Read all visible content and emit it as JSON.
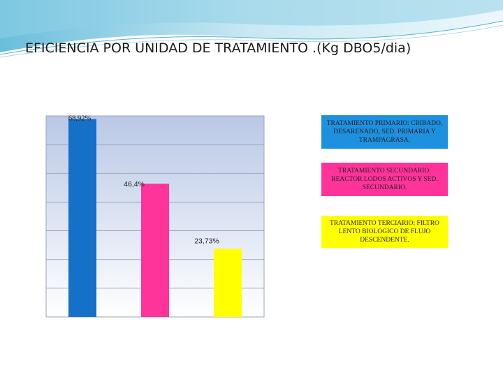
{
  "slide": {
    "title": "EFICIENCIA POR UNIDAD DE TRATAMIENTO .(Kg DBO5/dia)"
  },
  "colors": {
    "background": "#ffffff",
    "wave_light": "#cfeaf3",
    "wave_mid": "#8fd0e6",
    "wave_dark": "#4fb3d6",
    "plot_top": "#b9c8e6",
    "plot_bottom": "#ffffff"
  },
  "chart_data": {
    "type": "bar",
    "title": "",
    "xlabel": "",
    "ylabel": "",
    "ylim": [
      0,
      70
    ],
    "grid": true,
    "legend_position": "right",
    "categories": [
      "TRATAMIENTO PRIMARIO: CRIBADO, DESARENADO, SED. PRIMARIA Y TRAMPAGRASA.",
      "TRATAMIENTO SECUNDARIO: REACTOR LODOS ACTIVOS Y SED. SECUNDARIO.",
      "TRATAMIENTO TERCIARIO: FILTRO LENTO BIOLOGICO DE FLUJO DESCENDENTE."
    ],
    "values": [
      68.92,
      46.4,
      23.73
    ],
    "data_labels": [
      "68,92%",
      "46,4%",
      "23,73%"
    ],
    "bar_colors": [
      "#1570c8",
      "#ff3399",
      "#ffff00"
    ],
    "legend_colors": [
      "#1e90e0",
      "#ff3399",
      "#ffff00"
    ]
  }
}
